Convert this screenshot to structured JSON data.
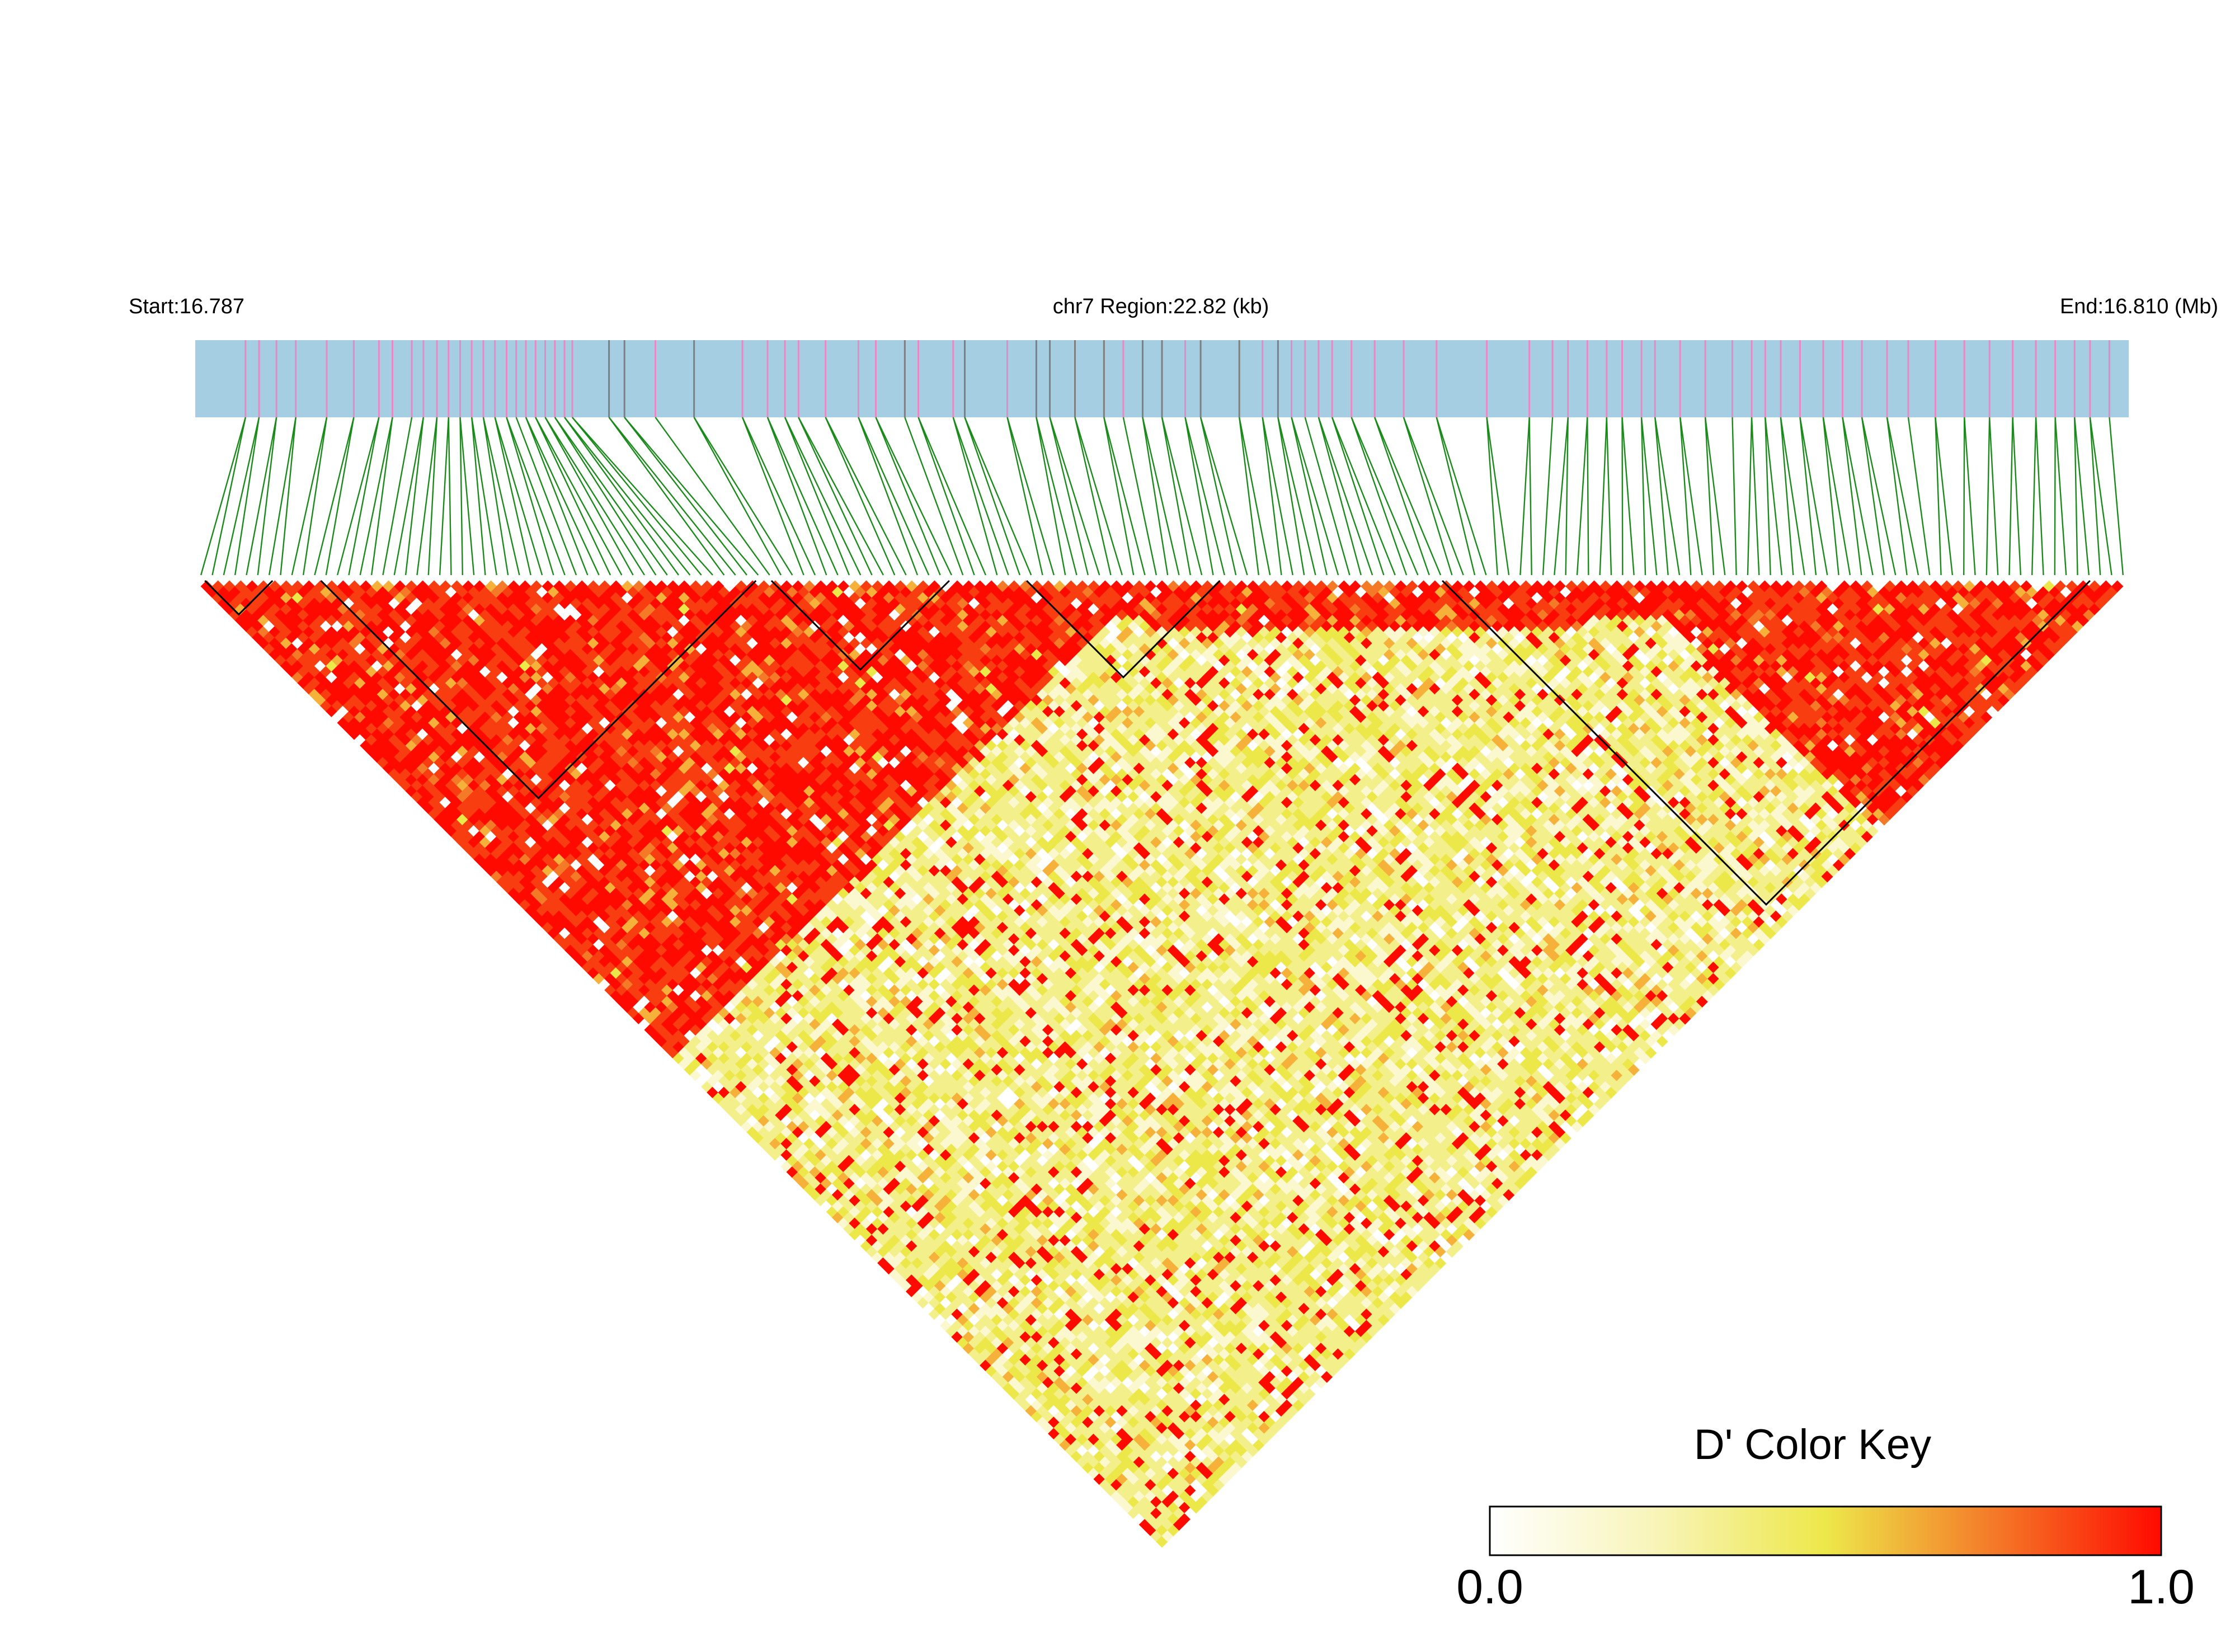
{
  "chart_data": {
    "type": "heatmap",
    "header": {
      "start_label": "Start:16.787",
      "region_label": "chr7 Region:22.82 (kb)",
      "end_label": "End:16.810 (Mb)"
    },
    "region": {
      "chromosome": "chr7",
      "start_mb": 16.787,
      "end_mb": 16.81,
      "length_kb": 22.82
    },
    "colors": {
      "track_bg": "#a6cee3",
      "snp_mark_pink": "#e889c3",
      "snp_mark_gray": "#7f7f7f",
      "connector": "#1a8a1a",
      "low": "#ffffff",
      "mid": "#ede84a",
      "high": "#ff0a00",
      "block_outline": "#000000"
    },
    "color_key": {
      "title": "D' Color Key",
      "min_label": "0.0",
      "max_label": "1.0",
      "min": 0.0,
      "max": 1.0
    },
    "snp_marks": [
      {
        "p": 0.026,
        "c": "p"
      },
      {
        "p": 0.033,
        "c": "p"
      },
      {
        "p": 0.042,
        "c": "p"
      },
      {
        "p": 0.052,
        "c": "p"
      },
      {
        "p": 0.068,
        "c": "p"
      },
      {
        "p": 0.082,
        "c": "p"
      },
      {
        "p": 0.095,
        "c": "p"
      },
      {
        "p": 0.102,
        "c": "p"
      },
      {
        "p": 0.112,
        "c": "p"
      },
      {
        "p": 0.118,
        "c": "p"
      },
      {
        "p": 0.125,
        "c": "p"
      },
      {
        "p": 0.131,
        "c": "p"
      },
      {
        "p": 0.137,
        "c": "p"
      },
      {
        "p": 0.143,
        "c": "p"
      },
      {
        "p": 0.149,
        "c": "p"
      },
      {
        "p": 0.155,
        "c": "p"
      },
      {
        "p": 0.161,
        "c": "p"
      },
      {
        "p": 0.166,
        "c": "p"
      },
      {
        "p": 0.171,
        "c": "p"
      },
      {
        "p": 0.176,
        "c": "p"
      },
      {
        "p": 0.181,
        "c": "p"
      },
      {
        "p": 0.186,
        "c": "p"
      },
      {
        "p": 0.191,
        "c": "p"
      },
      {
        "p": 0.195,
        "c": "p"
      },
      {
        "p": 0.214,
        "c": "g"
      },
      {
        "p": 0.222,
        "c": "g"
      },
      {
        "p": 0.238,
        "c": "p"
      },
      {
        "p": 0.258,
        "c": "g"
      },
      {
        "p": 0.283,
        "c": "p"
      },
      {
        "p": 0.296,
        "c": "p"
      },
      {
        "p": 0.305,
        "c": "p"
      },
      {
        "p": 0.312,
        "c": "p"
      },
      {
        "p": 0.326,
        "c": "p"
      },
      {
        "p": 0.343,
        "c": "p"
      },
      {
        "p": 0.352,
        "c": "p"
      },
      {
        "p": 0.367,
        "c": "g"
      },
      {
        "p": 0.374,
        "c": "p"
      },
      {
        "p": 0.392,
        "c": "p"
      },
      {
        "p": 0.398,
        "c": "g"
      },
      {
        "p": 0.42,
        "c": "p"
      },
      {
        "p": 0.435,
        "c": "g"
      },
      {
        "p": 0.442,
        "c": "g"
      },
      {
        "p": 0.455,
        "c": "g"
      },
      {
        "p": 0.47,
        "c": "g"
      },
      {
        "p": 0.48,
        "c": "p"
      },
      {
        "p": 0.49,
        "c": "g"
      },
      {
        "p": 0.5,
        "c": "g"
      },
      {
        "p": 0.512,
        "c": "p"
      },
      {
        "p": 0.52,
        "c": "g"
      },
      {
        "p": 0.54,
        "c": "g"
      },
      {
        "p": 0.552,
        "c": "p"
      },
      {
        "p": 0.56,
        "c": "g"
      },
      {
        "p": 0.567,
        "c": "p"
      },
      {
        "p": 0.574,
        "c": "p"
      },
      {
        "p": 0.581,
        "c": "p"
      },
      {
        "p": 0.588,
        "c": "p"
      },
      {
        "p": 0.598,
        "c": "p"
      },
      {
        "p": 0.61,
        "c": "p"
      },
      {
        "p": 0.625,
        "c": "p"
      },
      {
        "p": 0.642,
        "c": "p"
      },
      {
        "p": 0.668,
        "c": "p"
      },
      {
        "p": 0.69,
        "c": "p"
      },
      {
        "p": 0.702,
        "c": "p"
      },
      {
        "p": 0.71,
        "c": "p"
      },
      {
        "p": 0.72,
        "c": "p"
      },
      {
        "p": 0.73,
        "c": "p"
      },
      {
        "p": 0.738,
        "c": "p"
      },
      {
        "p": 0.748,
        "c": "p"
      },
      {
        "p": 0.755,
        "c": "p"
      },
      {
        "p": 0.768,
        "c": "p"
      },
      {
        "p": 0.781,
        "c": "p"
      },
      {
        "p": 0.795,
        "c": "p"
      },
      {
        "p": 0.805,
        "c": "p"
      },
      {
        "p": 0.812,
        "c": "p"
      },
      {
        "p": 0.82,
        "c": "p"
      },
      {
        "p": 0.83,
        "c": "p"
      },
      {
        "p": 0.842,
        "c": "p"
      },
      {
        "p": 0.852,
        "c": "p"
      },
      {
        "p": 0.862,
        "c": "p"
      },
      {
        "p": 0.875,
        "c": "p"
      },
      {
        "p": 0.886,
        "c": "p"
      },
      {
        "p": 0.9,
        "c": "p"
      },
      {
        "p": 0.915,
        "c": "p"
      },
      {
        "p": 0.928,
        "c": "p"
      },
      {
        "p": 0.94,
        "c": "p"
      },
      {
        "p": 0.952,
        "c": "p"
      },
      {
        "p": 0.962,
        "c": "p"
      },
      {
        "p": 0.972,
        "c": "p"
      },
      {
        "p": 0.98,
        "c": "p"
      },
      {
        "p": 0.99,
        "c": "p"
      }
    ],
    "haplotype_blocks": [
      {
        "start": 0.005,
        "end": 0.04
      },
      {
        "start": 0.065,
        "end": 0.29
      },
      {
        "start": 0.298,
        "end": 0.39
      },
      {
        "start": 0.43,
        "end": 0.53
      },
      {
        "start": 0.645,
        "end": 0.98
      }
    ]
  }
}
